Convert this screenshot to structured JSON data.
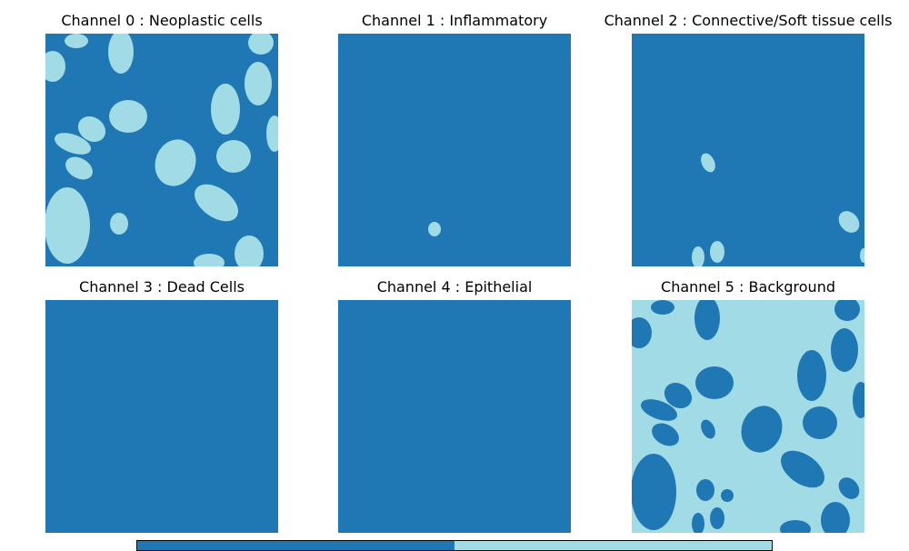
{
  "colors": {
    "background_class": "#1f77b4",
    "cell_class": "#a1dbe5"
  },
  "panels": [
    {
      "title": "Channel 0 : Neoplastic cells",
      "icon": "cell-mask-pattern-a"
    },
    {
      "title": "Channel 1 : Inflammatory",
      "icon": "cell-mask-single-dot"
    },
    {
      "title": "Channel 2 : Connective/Soft tissue cells",
      "icon": "cell-mask-sparse"
    },
    {
      "title": "Channel 3 : Dead Cells",
      "icon": "empty-mask"
    },
    {
      "title": "Channel 4 : Epithelial",
      "icon": "empty-mask"
    },
    {
      "title": "Channel 5 : Background",
      "icon": "cell-mask-pattern-inverted"
    }
  ],
  "colorbar": {
    "segments": [
      "#1f77b4",
      "#a1dbe5"
    ]
  }
}
